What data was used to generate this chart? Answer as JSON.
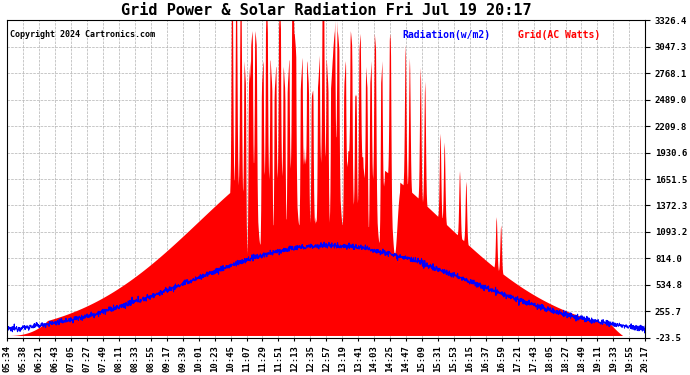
{
  "title": "Grid Power & Solar Radiation Fri Jul 19 20:17",
  "copyright": "Copyright 2024 Cartronics.com",
  "legend_radiation": "Radiation(w/m2)",
  "legend_grid": "Grid(AC Watts)",
  "ymin": -23.5,
  "ymax": 3326.4,
  "yticks": [
    -23.5,
    255.7,
    534.8,
    814.0,
    1093.2,
    1372.3,
    1651.5,
    1930.6,
    2209.8,
    2489.0,
    2768.1,
    3047.3,
    3326.4
  ],
  "radiation_color": "blue",
  "grid_color": "red",
  "background_color": "#ffffff",
  "plot_bg_color": "#ffffff",
  "title_fontsize": 11,
  "tick_fontsize": 6.5,
  "x_tick_rotation": 90,
  "time_labels": [
    "05:34",
    "05:38",
    "06:21",
    "06:43",
    "07:05",
    "07:27",
    "07:49",
    "08:11",
    "08:33",
    "08:55",
    "09:17",
    "09:39",
    "10:01",
    "10:23",
    "10:45",
    "11:07",
    "11:29",
    "11:51",
    "12:13",
    "12:35",
    "12:57",
    "13:19",
    "13:41",
    "14:03",
    "14:25",
    "14:47",
    "15:09",
    "15:31",
    "15:53",
    "16:15",
    "16:37",
    "16:59",
    "17:21",
    "17:43",
    "18:05",
    "18:27",
    "18:49",
    "19:11",
    "19:33",
    "19:55",
    "20:17"
  ]
}
